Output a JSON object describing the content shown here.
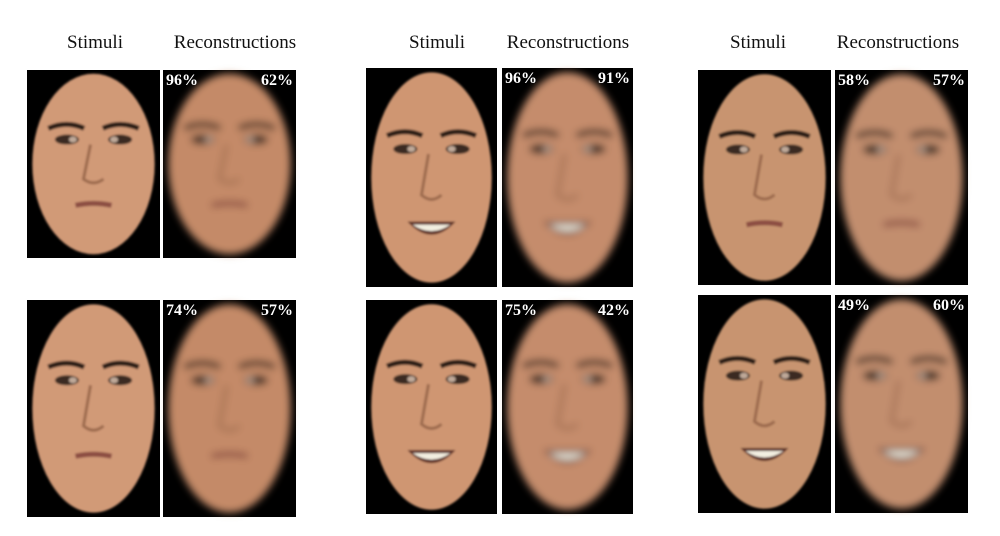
{
  "panels": [
    {
      "headers": {
        "stimuli": "Stimuli",
        "reconstructions": "Reconstructions"
      },
      "rows": [
        {
          "scores": [
            "96%",
            "62%"
          ]
        },
        {
          "scores": [
            "74%",
            "57%"
          ]
        }
      ]
    },
    {
      "headers": {
        "stimuli": "Stimuli",
        "reconstructions": "Reconstructions"
      },
      "rows": [
        {
          "scores": [
            "96%",
            "91%"
          ]
        },
        {
          "scores": [
            "75%",
            "42%"
          ]
        }
      ]
    },
    {
      "headers": {
        "stimuli": "Stimuli",
        "reconstructions": "Reconstructions"
      },
      "rows": [
        {
          "scores": [
            "58%",
            "57%"
          ]
        },
        {
          "scores": [
            "49%",
            "60%"
          ]
        }
      ]
    }
  ]
}
